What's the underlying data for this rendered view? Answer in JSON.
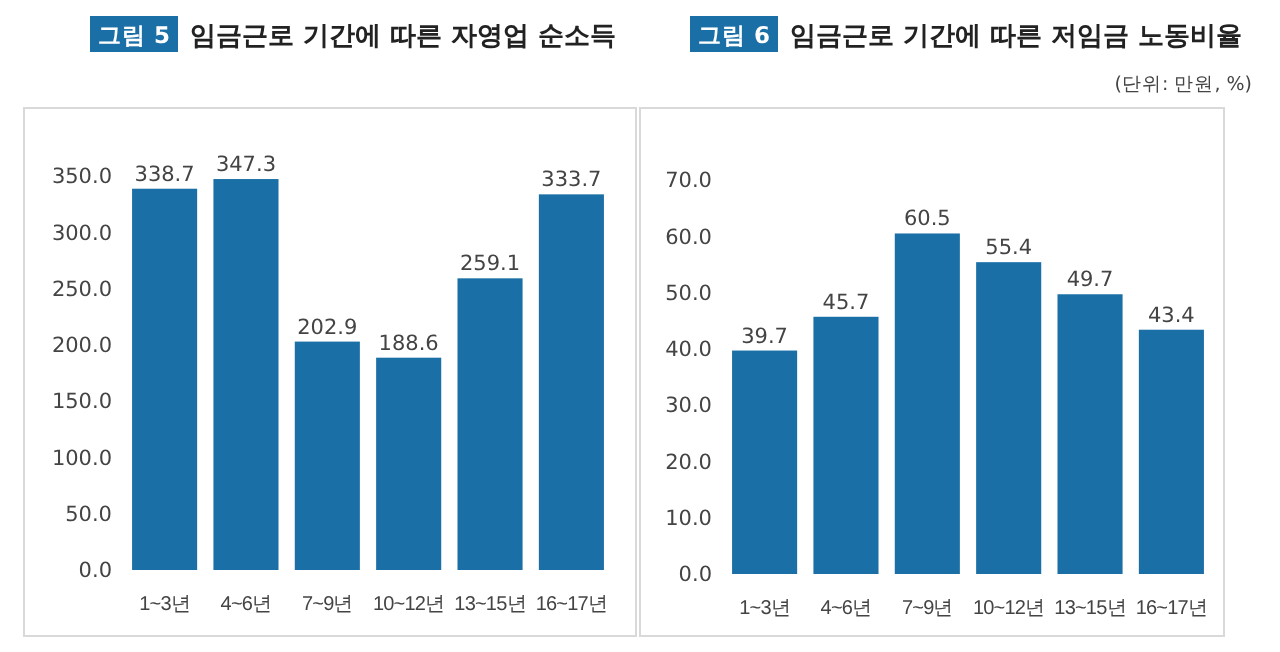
{
  "chart_data": [
    {
      "type": "bar",
      "title": "임금근로 기간에 따른 자영업 순소득",
      "annotations": [
        "그림 5"
      ],
      "categories": [
        "1~3년",
        "4~6년",
        "7~9년",
        "10~12년",
        "13~15년",
        "16~17년"
      ],
      "values": [
        338.7,
        347.3,
        202.9,
        188.6,
        259.1,
        333.7
      ],
      "color": "#1a6fa6",
      "ylim": [
        0,
        350
      ],
      "yticks": [
        {
          "value": 0,
          "label": "0.0"
        },
        {
          "value": 50,
          "label": "50.0"
        },
        {
          "value": 100,
          "label": "100.0"
        },
        {
          "value": 150,
          "label": "150.0"
        },
        {
          "value": 200,
          "label": "200.0"
        },
        {
          "value": 250,
          "label": "250.0"
        },
        {
          "value": 300,
          "label": "300.0"
        },
        {
          "value": 350,
          "label": "350.0"
        }
      ],
      "data_labels": true,
      "grid": false
    },
    {
      "type": "bar",
      "title": "임금근로 기간에 따른 저임금 노동비율",
      "annotations": [
        "그림 6",
        "(단위: 만원, %)"
      ],
      "categories": [
        "1~3년",
        "4~6년",
        "7~9년",
        "10~12년",
        "13~15년",
        "16~17년"
      ],
      "values": [
        39.7,
        45.7,
        60.5,
        55.4,
        49.7,
        43.4
      ],
      "color": "#1a6fa6",
      "ylim": [
        0,
        70
      ],
      "yticks": [
        {
          "value": 0,
          "label": "0.0"
        },
        {
          "value": 10,
          "label": "10.0"
        },
        {
          "value": 20,
          "label": "20.0"
        },
        {
          "value": 30,
          "label": "30.0"
        },
        {
          "value": 40,
          "label": "40.0"
        },
        {
          "value": 50,
          "label": "50.0"
        },
        {
          "value": 60,
          "label": "60.0"
        },
        {
          "value": 70,
          "label": "70.0"
        }
      ],
      "data_labels": true,
      "grid": false
    }
  ]
}
